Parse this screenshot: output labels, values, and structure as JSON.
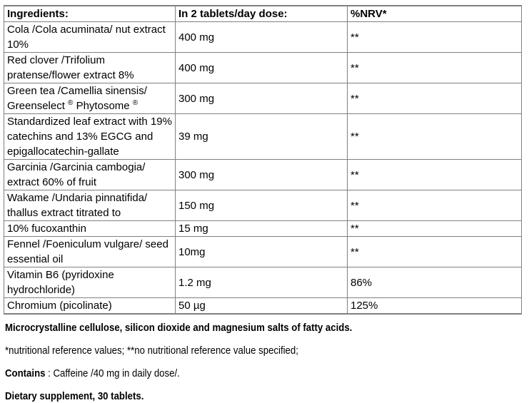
{
  "table": {
    "headers": [
      "Ingredients:",
      "In 2 tablets/day dose:",
      "%NRV*"
    ],
    "rows": [
      {
        "ingredient": "Cola /Cola acuminata/ nut extract 10%",
        "dose": "400 mg",
        "nrv": "**"
      },
      {
        "ingredient": "Red clover /Trifolium pratense/flower extract 8%",
        "dose": "400 mg",
        "nrv": "**"
      },
      {
        "ingredient": "Green tea /Camellia sinensis/ Greenselect ® Phytosome ®",
        "dose": "300 mg",
        "nrv": "**"
      },
      {
        "ingredient": "Standardized leaf extract with 19% catechins and 13% EGCG and epigallocatechin-gallate",
        "dose": "39 mg",
        "nrv": "**"
      },
      {
        "ingredient": "Garcinia /Garcinia cambogia/ extract 60% of fruit",
        "dose": "300 mg",
        "nrv": "**"
      },
      {
        "ingredient": "Wakame /Undaria pinnatifida/ thallus extract titrated to",
        "dose": "150 mg",
        "nrv": "**"
      },
      {
        "ingredient": "10% fucoxanthin",
        "dose": "15 mg",
        "nrv": "**"
      },
      {
        "ingredient": "Fennel /Foeniculum vulgare/ seed essential oil",
        "dose": "10mg",
        "nrv": "**"
      },
      {
        "ingredient": "Vitamin B6 (pyridoxine hydrochloride)",
        "dose": "1.2 mg",
        "nrv": "86%"
      },
      {
        "ingredient": "Chromium (picolinate)",
        "dose": "50 µg",
        "nrv": "125%"
      }
    ]
  },
  "notes": {
    "excipients": "Microcrystalline cellulose, silicon dioxide and magnesium salts of fatty acids.",
    "nrv_footnote": "*nutritional reference values; **no nutritional reference value specified;",
    "contains_label": "Contains",
    "contains_text": " : Caffeine /40 mg in daily dose/.",
    "supplement": "Dietary supplement, 30 tablets."
  },
  "colors": {
    "border": "#808080",
    "text": "#000000",
    "background": "#ffffff"
  }
}
